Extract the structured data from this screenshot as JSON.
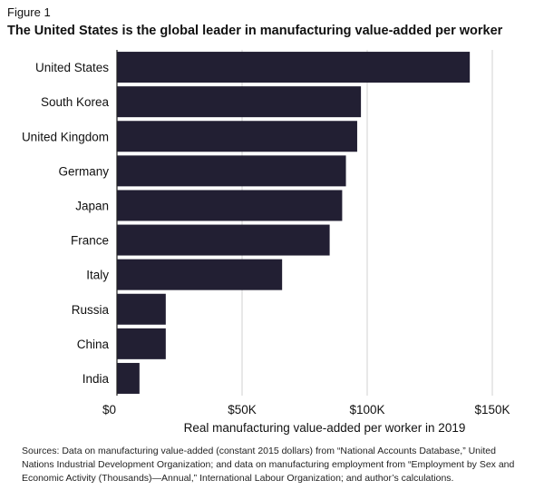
{
  "figure_label": "Figure 1",
  "title": "The United States is the global leader in manufacturing value-added per worker",
  "sources": "Sources: Data on manufacturing value-added (constant 2015 dollars) from “National Accounts Database,” United Nations Industrial Development Organization; and data on manufacturing employment from “Employment by Sex and Economic Activity (Thousands)—Annual,” International Labour Organization; and author’s calculations.",
  "colors": {
    "bar": "#221f33",
    "grid": "#d0d0d0",
    "axis": "#222222"
  },
  "chart_data": {
    "type": "bar",
    "orientation": "horizontal",
    "categories": [
      "United States",
      "South Korea",
      "United Kingdom",
      "Germany",
      "Japan",
      "France",
      "Italy",
      "Russia",
      "China",
      "India"
    ],
    "values": [
      141000,
      97500,
      96000,
      91500,
      90000,
      85000,
      66000,
      19500,
      19500,
      9000
    ],
    "xlabel": "Real manufacturing value-added per worker in 2019",
    "ylabel": "",
    "xlim": [
      0,
      150000
    ],
    "xticks": [
      0,
      50000,
      100000,
      150000
    ],
    "xtick_labels": [
      "$0",
      "$50K",
      "$100K",
      "$150K"
    ],
    "grid": true
  }
}
